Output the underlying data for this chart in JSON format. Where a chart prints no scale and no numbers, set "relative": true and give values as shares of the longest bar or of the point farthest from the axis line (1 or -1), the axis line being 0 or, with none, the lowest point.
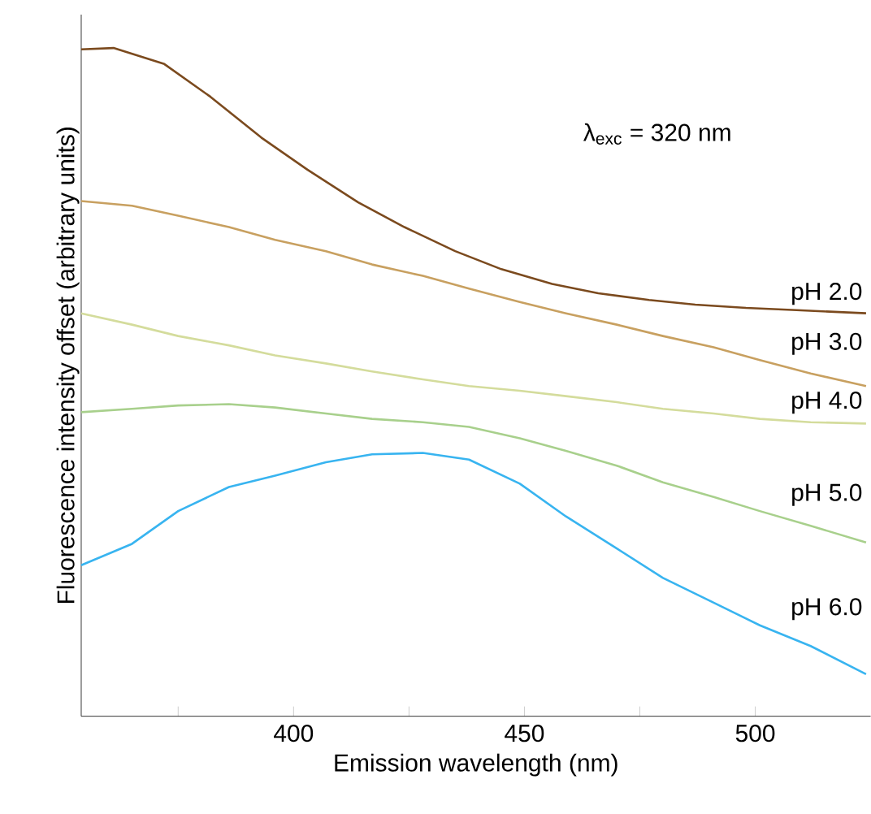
{
  "chart_data": {
    "type": "line",
    "relative": true,
    "xlabel": "Emission wavelength (nm)",
    "ylabel": "Fluorescence intensity offset (arbitrary units)",
    "xlim": [
      354,
      525
    ],
    "xticks": [
      {
        "value": 375,
        "label": null
      },
      400,
      {
        "value": 425,
        "label": null
      },
      450,
      {
        "value": 475,
        "label": null
      },
      500
    ],
    "annotations": [
      "λ$_{exc}$ = 320 nm"
    ],
    "legend": false,
    "marker": "none",
    "line_style": "solid",
    "series": [
      {
        "name": "pH 2.0",
        "color": "#7b4a1e",
        "x": [
          354,
          361,
          372,
          382,
          393,
          403,
          414,
          424,
          435,
          445,
          456,
          466,
          477,
          487,
          498,
          508,
          524
        ],
        "values": [
          0.998,
          1.0,
          0.976,
          0.927,
          0.866,
          0.818,
          0.769,
          0.732,
          0.696,
          0.669,
          0.647,
          0.633,
          0.623,
          0.616,
          0.611,
          0.608,
          0.603
        ]
      },
      {
        "name": "pH 3.0",
        "color": "#c8a060",
        "x": [
          354,
          365,
          375,
          386,
          396,
          407,
          417,
          428,
          438,
          449,
          459,
          470,
          480,
          491,
          501,
          512,
          524
        ],
        "values": [
          0.771,
          0.764,
          0.749,
          0.732,
          0.713,
          0.696,
          0.676,
          0.659,
          0.64,
          0.62,
          0.603,
          0.586,
          0.569,
          0.552,
          0.533,
          0.513,
          0.494
        ]
      },
      {
        "name": "pH 4.0",
        "color": "#d4dc9c",
        "x": [
          354,
          365,
          375,
          386,
          396,
          407,
          417,
          428,
          438,
          449,
          459,
          470,
          480,
          491,
          501,
          512,
          524
        ],
        "values": [
          0.603,
          0.586,
          0.569,
          0.555,
          0.54,
          0.528,
          0.516,
          0.504,
          0.494,
          0.487,
          0.479,
          0.47,
          0.46,
          0.453,
          0.445,
          0.44,
          0.438
        ]
      },
      {
        "name": "pH 5.0",
        "color": "#a8d08c",
        "x": [
          354,
          365,
          375,
          386,
          396,
          407,
          417,
          428,
          438,
          449,
          459,
          470,
          480,
          491,
          501,
          512,
          524
        ],
        "values": [
          0.455,
          0.46,
          0.465,
          0.467,
          0.462,
          0.453,
          0.445,
          0.44,
          0.433,
          0.416,
          0.397,
          0.375,
          0.35,
          0.328,
          0.307,
          0.285,
          0.26
        ]
      },
      {
        "name": "pH 6.0",
        "color": "#38b4f0",
        "x": [
          354,
          365,
          375,
          386,
          396,
          407,
          417,
          428,
          438,
          449,
          459,
          470,
          480,
          491,
          501,
          512,
          524
        ],
        "values": [
          0.226,
          0.258,
          0.307,
          0.343,
          0.36,
          0.38,
          0.392,
          0.394,
          0.384,
          0.348,
          0.299,
          0.251,
          0.207,
          0.17,
          0.136,
          0.105,
          0.063
        ]
      }
    ]
  }
}
